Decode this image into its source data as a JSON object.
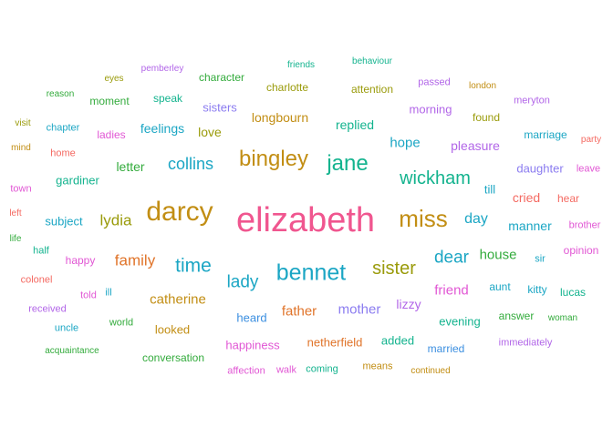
{
  "colors": {
    "pink": "#f0568f",
    "olive": "#9a9b0b",
    "gold": "#c28e14",
    "orange": "#e0742a",
    "red": "#f46a62",
    "green": "#33ab3c",
    "teal": "#13b38e",
    "cyan": "#1ba6c4",
    "blue": "#3c8fe0",
    "purple": "#b266e8",
    "magenta": "#e157d4",
    "violet": "#8b7cf0"
  },
  "words": [
    {
      "text": "elizabeth",
      "color": "pink"
    },
    {
      "text": "darcy",
      "color": "gold"
    },
    {
      "text": "miss",
      "color": "gold"
    },
    {
      "text": "bennet",
      "color": "cyan"
    },
    {
      "text": "jane",
      "color": "teal"
    },
    {
      "text": "bingley",
      "color": "gold"
    },
    {
      "text": "sister",
      "color": "olive"
    },
    {
      "text": "time",
      "color": "cyan"
    },
    {
      "text": "wickham",
      "color": "teal"
    },
    {
      "text": "lady",
      "color": "cyan"
    },
    {
      "text": "dear",
      "color": "cyan"
    },
    {
      "text": "collins",
      "color": "cyan"
    },
    {
      "text": "family",
      "color": "orange"
    },
    {
      "text": "lydia",
      "color": "olive"
    },
    {
      "text": "day",
      "color": "cyan"
    },
    {
      "text": "catherine",
      "color": "gold"
    },
    {
      "text": "father",
      "color": "orange"
    },
    {
      "text": "mother",
      "color": "violet"
    },
    {
      "text": "house",
      "color": "green"
    },
    {
      "text": "friend",
      "color": "magenta"
    },
    {
      "text": "hope",
      "color": "cyan"
    },
    {
      "text": "longbourn",
      "color": "gold"
    },
    {
      "text": "pleasure",
      "color": "purple"
    },
    {
      "text": "replied",
      "color": "teal"
    },
    {
      "text": "letter",
      "color": "green"
    },
    {
      "text": "manner",
      "color": "cyan"
    },
    {
      "text": "lizzy",
      "color": "purple"
    },
    {
      "text": "feelings",
      "color": "cyan"
    },
    {
      "text": "love",
      "color": "olive"
    },
    {
      "text": "cried",
      "color": "red"
    },
    {
      "text": "daughter",
      "color": "violet"
    },
    {
      "text": "heard",
      "color": "blue"
    },
    {
      "text": "gardiner",
      "color": "teal"
    },
    {
      "text": "subject",
      "color": "cyan"
    },
    {
      "text": "evening",
      "color": "teal"
    },
    {
      "text": "netherfield",
      "color": "orange"
    },
    {
      "text": "happiness",
      "color": "magenta"
    },
    {
      "text": "added",
      "color": "teal"
    },
    {
      "text": "morning",
      "color": "purple"
    },
    {
      "text": "looked",
      "color": "gold"
    },
    {
      "text": "conversation",
      "color": "green"
    },
    {
      "text": "aunt",
      "color": "cyan"
    },
    {
      "text": "married",
      "color": "blue"
    },
    {
      "text": "sisters",
      "color": "violet"
    },
    {
      "text": "attention",
      "color": "olive"
    },
    {
      "text": "charlotte",
      "color": "olive"
    },
    {
      "text": "character",
      "color": "green"
    },
    {
      "text": "marriage",
      "color": "cyan"
    },
    {
      "text": "kitty",
      "color": "cyan"
    },
    {
      "text": "found",
      "color": "olive"
    },
    {
      "text": "answer",
      "color": "green"
    },
    {
      "text": "till",
      "color": "cyan"
    },
    {
      "text": "happy",
      "color": "magenta"
    },
    {
      "text": "lucas",
      "color": "teal"
    },
    {
      "text": "immediately",
      "color": "purple"
    },
    {
      "text": "speak",
      "color": "teal"
    },
    {
      "text": "moment",
      "color": "green"
    },
    {
      "text": "ladies",
      "color": "magenta"
    },
    {
      "text": "chapter",
      "color": "cyan"
    },
    {
      "text": "home",
      "color": "red"
    },
    {
      "text": "leave",
      "color": "magenta"
    },
    {
      "text": "hear",
      "color": "red"
    },
    {
      "text": "opinion",
      "color": "magenta"
    },
    {
      "text": "brother",
      "color": "magenta"
    },
    {
      "text": "world",
      "color": "green"
    },
    {
      "text": "received",
      "color": "purple"
    },
    {
      "text": "colonel",
      "color": "red"
    },
    {
      "text": "told",
      "color": "magenta"
    },
    {
      "text": "uncle",
      "color": "cyan"
    },
    {
      "text": "acquaintance",
      "color": "green"
    },
    {
      "text": "affection",
      "color": "magenta"
    },
    {
      "text": "walk",
      "color": "magenta"
    },
    {
      "text": "coming",
      "color": "teal"
    },
    {
      "text": "means",
      "color": "gold"
    },
    {
      "text": "continued",
      "color": "gold"
    },
    {
      "text": "woman",
      "color": "green"
    },
    {
      "text": "passed",
      "color": "purple"
    },
    {
      "text": "london",
      "color": "gold"
    },
    {
      "text": "meryton",
      "color": "purple"
    },
    {
      "text": "party",
      "color": "red"
    },
    {
      "text": "friends",
      "color": "teal"
    },
    {
      "text": "behaviour",
      "color": "teal"
    },
    {
      "text": "pemberley",
      "color": "purple"
    },
    {
      "text": "eyes",
      "color": "olive"
    },
    {
      "text": "reason",
      "color": "green"
    },
    {
      "text": "visit",
      "color": "olive"
    },
    {
      "text": "mind",
      "color": "gold"
    },
    {
      "text": "town",
      "color": "magenta"
    },
    {
      "text": "left",
      "color": "red"
    },
    {
      "text": "life",
      "color": "green"
    },
    {
      "text": "half",
      "color": "teal"
    },
    {
      "text": "sir",
      "color": "cyan"
    },
    {
      "text": "ill",
      "color": "cyan"
    }
  ]
}
